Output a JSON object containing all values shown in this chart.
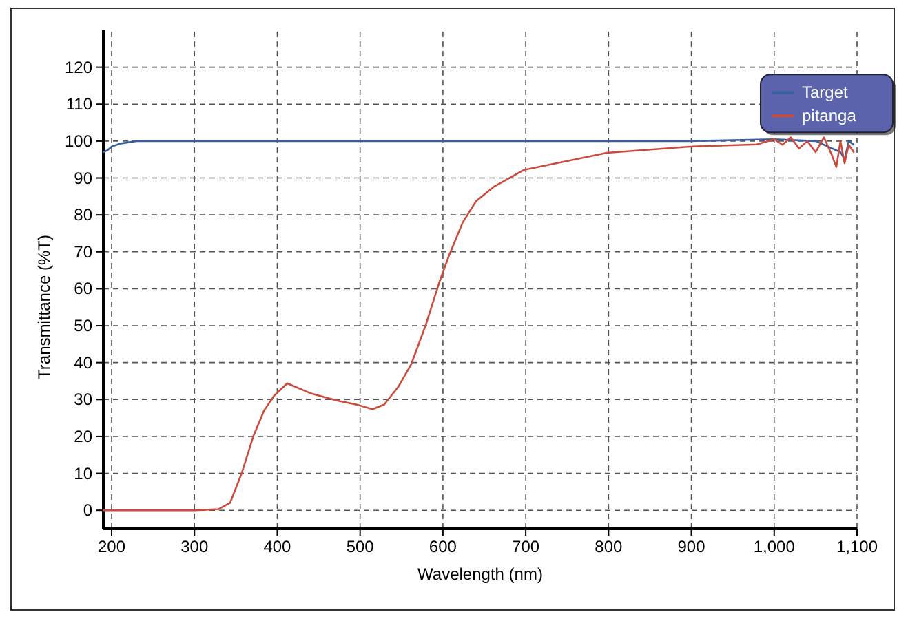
{
  "chart_data": {
    "type": "line",
    "xlabel": "Wavelength (nm)",
    "ylabel": "Transmittance (%T)",
    "xlim": [
      190,
      1100
    ],
    "ylim": [
      -5,
      130
    ],
    "xticks": [
      200,
      300,
      400,
      500,
      600,
      700,
      800,
      900,
      {
        "value": 1000,
        "label": "1,000"
      },
      {
        "value": 1100,
        "label": "1,100"
      }
    ],
    "yticks": [
      0,
      10,
      20,
      30,
      40,
      50,
      60,
      70,
      80,
      90,
      100,
      110,
      120
    ],
    "grid": true,
    "legend": "top right",
    "line_style": "solid",
    "marker": "none",
    "series": [
      {
        "name": "Target",
        "color": "#3a5f9c",
        "x": [
          190,
          195,
          200,
          210,
          230,
          300,
          400,
          500,
          600,
          700,
          800,
          900,
          1000,
          1050,
          1080,
          1085,
          1090,
          1096
        ],
        "values": [
          97,
          97.5,
          98.5,
          99.3,
          100,
          100,
          100,
          100,
          100,
          100,
          100,
          100,
          100.5,
          100,
          97,
          95,
          100,
          99
        ]
      },
      {
        "name": "pitanga",
        "color": "#cc4a3c",
        "x": [
          190,
          301,
          329,
          343,
          357,
          371,
          384,
          396,
          412,
          440,
          473,
          496,
          515,
          529,
          546,
          562,
          579,
          596,
          607,
          624,
          640,
          662,
          698,
          798,
          898,
          979,
          1000,
          1010,
          1020,
          1030,
          1040,
          1050,
          1060,
          1070,
          1075,
          1080,
          1085,
          1090,
          1096
        ],
        "values": [
          0,
          0,
          0.3,
          2,
          10,
          20,
          27,
          31,
          34.4,
          31.7,
          29.7,
          28.6,
          27.4,
          28.6,
          33.4,
          39.7,
          50,
          62,
          68.8,
          78,
          83.7,
          87.7,
          92.2,
          96.8,
          98.5,
          99.1,
          100.5,
          99,
          101,
          98,
          100,
          97,
          101,
          96,
          93,
          100,
          94,
          99,
          97
        ]
      }
    ]
  }
}
